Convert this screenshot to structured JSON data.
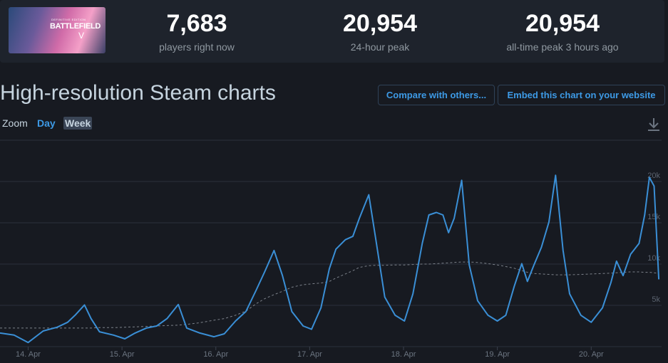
{
  "header": {
    "logo": {
      "edition": "DEFINITIVE EDITION",
      "name": "BATTLEFIELD",
      "numeral": "V"
    },
    "stats": [
      {
        "value": "7,683",
        "label": "players right now"
      },
      {
        "value": "20,954",
        "label": "24-hour peak"
      },
      {
        "value": "20,954",
        "label": "all-time peak 3 hours ago"
      }
    ]
  },
  "section": {
    "title": "High-resolution Steam charts",
    "buttons": [
      "Compare with others...",
      "Embed this chart on your website"
    ],
    "zoom": {
      "label": "Zoom",
      "options": [
        "Day",
        "Week"
      ]
    }
  },
  "chart_data": {
    "type": "line",
    "x": [
      13.7,
      13.85,
      14.0,
      14.16,
      14.31,
      14.42,
      14.5,
      14.6,
      14.67,
      14.76,
      14.91,
      15.03,
      15.14,
      15.26,
      15.37,
      15.48,
      15.6,
      15.69,
      15.83,
      15.98,
      16.09,
      16.21,
      16.32,
      16.43,
      16.52,
      16.62,
      16.71,
      16.81,
      16.93,
      17.02,
      17.12,
      17.21,
      17.28,
      17.38,
      17.46,
      17.53,
      17.63,
      17.7,
      17.8,
      17.91,
      18.01,
      18.1,
      18.2,
      18.27,
      18.35,
      18.42,
      18.48,
      18.54,
      18.62,
      18.7,
      18.79,
      18.9,
      19.0,
      19.09,
      19.18,
      19.26,
      19.32,
      19.39,
      19.47,
      19.55,
      19.62,
      19.7,
      19.77,
      19.89,
      20.0,
      20.12,
      20.21,
      20.27,
      20.34,
      20.42,
      20.51,
      20.57,
      20.62,
      20.67,
      20.72
    ],
    "series": [
      {
        "color": "#3a8fd6",
        "dashed": false,
        "values": [
          1650,
          1400,
          500,
          1900,
          2350,
          2950,
          3800,
          5050,
          3400,
          1800,
          1400,
          950,
          1650,
          2250,
          2500,
          3400,
          5100,
          2250,
          1650,
          1200,
          1550,
          3100,
          4250,
          6850,
          9050,
          11650,
          8600,
          4250,
          2500,
          2100,
          4700,
          9450,
          11800,
          12950,
          13350,
          15550,
          18400,
          13350,
          6000,
          3800,
          3100,
          6400,
          12500,
          15950,
          16250,
          15950,
          13800,
          15550,
          20150,
          9900,
          5550,
          3800,
          3100,
          3800,
          7300,
          10050,
          7900,
          9900,
          12050,
          15100,
          20750,
          11650,
          6400,
          3800,
          2950,
          4700,
          7750,
          10350,
          8600,
          11200,
          12500,
          15950,
          20500,
          19450,
          8150
        ]
      },
      {
        "color": "#7d828b",
        "dashed": true,
        "values": [
          2250,
          2250,
          2250,
          2250,
          2250,
          2250,
          2250,
          2250,
          2250,
          2300,
          2300,
          2350,
          2400,
          2450,
          2500,
          2550,
          2600,
          2700,
          2900,
          3200,
          3400,
          3800,
          4300,
          5200,
          5800,
          6300,
          6700,
          7200,
          7500,
          7600,
          7700,
          7900,
          8300,
          8800,
          9200,
          9600,
          9800,
          9850,
          9850,
          9900,
          9900,
          9950,
          10000,
          10000,
          10050,
          10100,
          10150,
          10200,
          10250,
          10250,
          10200,
          10050,
          9900,
          9700,
          9500,
          9200,
          9000,
          8850,
          8800,
          8750,
          8700,
          8700,
          8700,
          8750,
          8800,
          8850,
          8900,
          8950,
          9000,
          9050,
          9050,
          9000,
          9000,
          8950,
          8850
        ]
      }
    ],
    "xlim": [
      13.7,
      20.75
    ],
    "xticks": [
      {
        "value": 14,
        "label": "14. Apr"
      },
      {
        "value": 15,
        "label": "15. Apr"
      },
      {
        "value": 16,
        "label": "16. Apr"
      },
      {
        "value": 17,
        "label": "17. Apr"
      },
      {
        "value": 18,
        "label": "18. Apr"
      },
      {
        "value": 19,
        "label": "19. Apr"
      },
      {
        "value": 20,
        "label": "20. Apr"
      }
    ],
    "ylim": [
      0,
      25000
    ],
    "yticks": [
      {
        "value": 5000,
        "label": "5k"
      },
      {
        "value": 10000,
        "label": "10k"
      },
      {
        "value": 15000,
        "label": "15k"
      },
      {
        "value": 20000,
        "label": "20k"
      }
    ],
    "grid": true
  }
}
